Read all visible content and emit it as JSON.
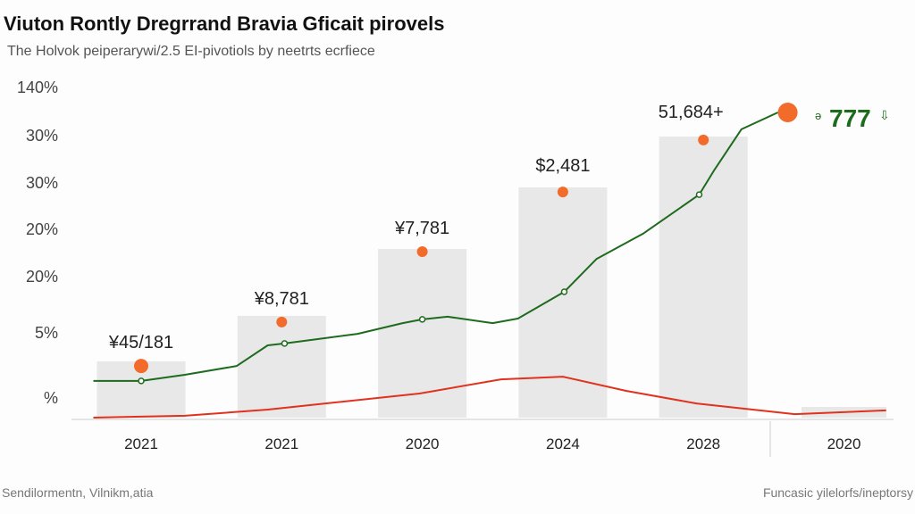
{
  "chart_data": {
    "type": "bar",
    "title": "Viuton Rontly Dregrrand Bravia Gficait pirovels",
    "subtitle": "The Holvok peiperarywi/2.5 EI-pivotiols by neetrts ecrfiece",
    "xlabel": "",
    "ylabel": "",
    "y_tick_labels": [
      "140%",
      "30%",
      "30%",
      "20%",
      "20%",
      "5%",
      "%"
    ],
    "categories": [
      "2021",
      "2021",
      "2020",
      "2024",
      "2028",
      "2020"
    ],
    "ylim": [
      0,
      120
    ],
    "grid": false,
    "bar_values": [
      21,
      38,
      63,
      86,
      105,
      4
    ],
    "bar_labels": [
      "¥45/181",
      "¥8,781",
      "¥7,781",
      "$2,481",
      "51,684+",
      ""
    ],
    "orange_points": [
      {
        "x": 0,
        "v": 19.3
      },
      {
        "x": 1,
        "v": 35.7
      },
      {
        "x": 2,
        "v": 62
      },
      {
        "x": 3,
        "v": 84.3
      },
      {
        "x": 4,
        "v": 103.7
      },
      {
        "x": 4.6,
        "v": 114
      }
    ],
    "series": [
      {
        "name": "green",
        "color": "#1e6b1e",
        "points": [
          [
            -0.34,
            13.7
          ],
          [
            0,
            13.7
          ],
          [
            0.31,
            16
          ],
          [
            0.68,
            19.3
          ],
          [
            0.9,
            27
          ],
          [
            1.02,
            27.7
          ],
          [
            1.54,
            31.3
          ],
          [
            1.86,
            35.3
          ],
          [
            2,
            36.7
          ],
          [
            2.18,
            37.7
          ],
          [
            2.5,
            35.3
          ],
          [
            2.68,
            37
          ],
          [
            3.01,
            47
          ],
          [
            3.24,
            59.3
          ],
          [
            3.57,
            68.7
          ],
          [
            3.97,
            83.3
          ],
          [
            4.08,
            92.7
          ],
          [
            4.27,
            107.7
          ],
          [
            4.53,
            114
          ]
        ],
        "markers": [
          0,
          1,
          2,
          3,
          4
        ]
      },
      {
        "name": "red",
        "color": "#e0321e",
        "points": [
          [
            -0.34,
            0
          ],
          [
            0.31,
            0.7
          ],
          [
            0.9,
            3
          ],
          [
            1.98,
            9
          ],
          [
            2.56,
            14.3
          ],
          [
            3,
            15.3
          ],
          [
            3.45,
            10
          ],
          [
            3.95,
            5.3
          ],
          [
            4.65,
            1.3
          ],
          [
            5.3,
            2.7
          ]
        ]
      }
    ],
    "highlight_value": "777",
    "footer_left": "Sendilormentn, Vilnikm,atia",
    "footer_right": "Funcasic yilelorfs/ineptorsy"
  },
  "colors": {
    "bar": "#e8e8e8",
    "orange": "#f26b2a",
    "green": "#1e6b1e",
    "red": "#e0321e"
  }
}
